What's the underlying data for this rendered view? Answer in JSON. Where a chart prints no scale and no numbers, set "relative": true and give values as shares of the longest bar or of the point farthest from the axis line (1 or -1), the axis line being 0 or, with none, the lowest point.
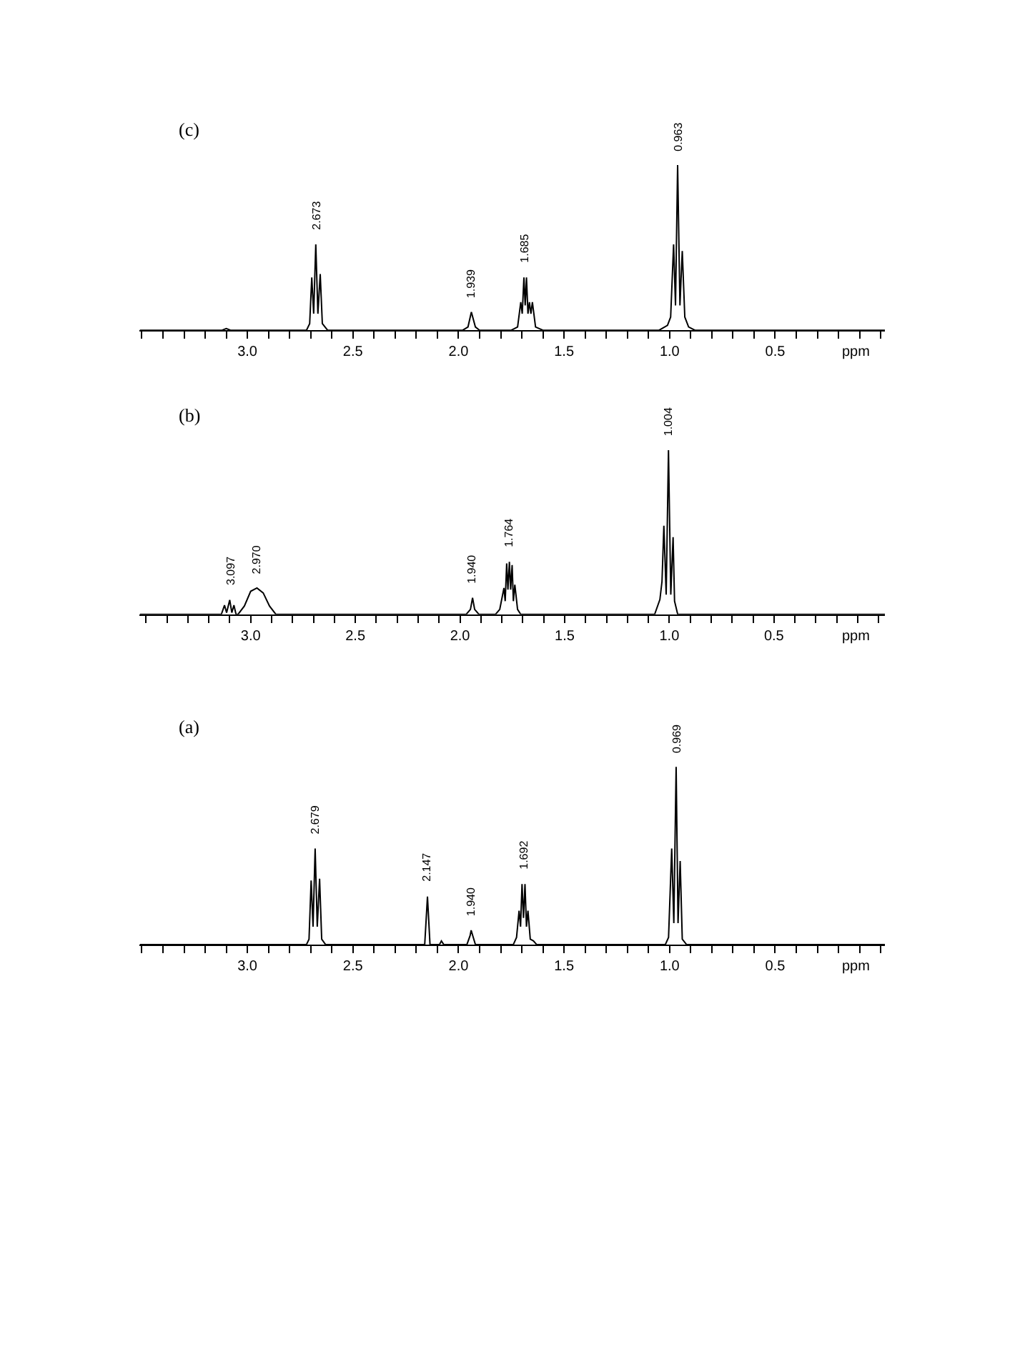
{
  "chart_data": [
    {
      "type": "line",
      "title": "(c)",
      "xlabel": "ppm",
      "relative": true,
      "xlim": [
        3.51,
        -0.02
      ],
      "xticks": [
        {
          "value": 3.5,
          "label": null
        },
        {
          "value": 3.4,
          "label": null
        },
        {
          "value": 3.3,
          "label": null
        },
        {
          "value": 3.2,
          "label": null
        },
        {
          "value": 3.1,
          "label": null
        },
        {
          "value": 3.0,
          "label": "3.0"
        },
        {
          "value": 2.9,
          "label": null
        },
        {
          "value": 2.8,
          "label": null
        },
        {
          "value": 2.7,
          "label": null
        },
        {
          "value": 2.6,
          "label": null
        },
        {
          "value": 2.5,
          "label": "2.5"
        },
        {
          "value": 2.4,
          "label": null
        },
        {
          "value": 2.3,
          "label": null
        },
        {
          "value": 2.2,
          "label": null
        },
        {
          "value": 2.1,
          "label": null
        },
        {
          "value": 2.0,
          "label": "2.0"
        },
        {
          "value": 1.9,
          "label": null
        },
        {
          "value": 1.8,
          "label": null
        },
        {
          "value": 1.7,
          "label": null
        },
        {
          "value": 1.6,
          "label": null
        },
        {
          "value": 1.5,
          "label": "1.5"
        },
        {
          "value": 1.4,
          "label": null
        },
        {
          "value": 1.3,
          "label": null
        },
        {
          "value": 1.2,
          "label": null
        },
        {
          "value": 1.1,
          "label": null
        },
        {
          "value": 1.0,
          "label": "1.0"
        },
        {
          "value": 0.9,
          "label": null
        },
        {
          "value": 0.8,
          "label": null
        },
        {
          "value": 0.7,
          "label": null
        },
        {
          "value": 0.6,
          "label": null
        },
        {
          "value": 0.5,
          "label": "0.5"
        },
        {
          "value": 0.4,
          "label": null
        },
        {
          "value": 0.3,
          "label": null
        },
        {
          "value": 0.2,
          "label": null
        },
        {
          "value": 0.1,
          "label": null
        },
        {
          "value": 0.0,
          "label": null
        }
      ],
      "annotations": [
        {
          "text": "2.673",
          "x": 2.673,
          "y": 0.52
        },
        {
          "text": "1.939",
          "x": 1.939,
          "y": 0.11
        },
        {
          "text": "1.685",
          "x": 1.685,
          "y": 0.32
        },
        {
          "text": "0.963",
          "x": 0.963,
          "y": 1
        }
      ],
      "series": [
        {
          "color": "#000000",
          "x": [
            3.51,
            3.12,
            3.1,
            3.08,
            2.72,
            2.705,
            2.695,
            2.686,
            2.676,
            2.666,
            2.655,
            2.645,
            2.62,
            1.98,
            1.955,
            1.939,
            1.92,
            1.9,
            1.75,
            1.72,
            1.705,
            1.698,
            1.69,
            1.684,
            1.678,
            1.671,
            1.664,
            1.657,
            1.65,
            1.635,
            1.6,
            1.05,
            1.01,
            0.995,
            0.981,
            0.972,
            0.962,
            0.951,
            0.94,
            0.928,
            0.91,
            0.88,
            -0.02
          ],
          "values": [
            0,
            0,
            0.01,
            0,
            0,
            0.04,
            0.32,
            0.1,
            0.52,
            0.1,
            0.34,
            0.04,
            0,
            0,
            0.02,
            0.11,
            0.02,
            0,
            0,
            0.02,
            0.17,
            0.1,
            0.32,
            0.15,
            0.32,
            0.1,
            0.17,
            0.1,
            0.17,
            0.02,
            0,
            0,
            0.03,
            0.08,
            0.52,
            0.15,
            1,
            0.15,
            0.48,
            0.08,
            0.02,
            0,
            0
          ]
        }
      ]
    },
    {
      "type": "line",
      "title": "(b)",
      "xlabel": "ppm",
      "relative": true,
      "xlim": [
        3.53,
        -0.03
      ],
      "xticks": [
        {
          "value": 3.5,
          "label": null
        },
        {
          "value": 3.4,
          "label": null
        },
        {
          "value": 3.3,
          "label": null
        },
        {
          "value": 3.2,
          "label": null
        },
        {
          "value": 3.1,
          "label": null
        },
        {
          "value": 3.0,
          "label": "3.0"
        },
        {
          "value": 2.9,
          "label": null
        },
        {
          "value": 2.8,
          "label": null
        },
        {
          "value": 2.7,
          "label": null
        },
        {
          "value": 2.6,
          "label": null
        },
        {
          "value": 2.5,
          "label": "2.5"
        },
        {
          "value": 2.4,
          "label": null
        },
        {
          "value": 2.3,
          "label": null
        },
        {
          "value": 2.2,
          "label": null
        },
        {
          "value": 2.1,
          "label": null
        },
        {
          "value": 2.0,
          "label": "2.0"
        },
        {
          "value": 1.9,
          "label": null
        },
        {
          "value": 1.8,
          "label": null
        },
        {
          "value": 1.7,
          "label": null
        },
        {
          "value": 1.6,
          "label": null
        },
        {
          "value": 1.5,
          "label": "1.5"
        },
        {
          "value": 1.4,
          "label": null
        },
        {
          "value": 1.3,
          "label": null
        },
        {
          "value": 1.2,
          "label": null
        },
        {
          "value": 1.1,
          "label": null
        },
        {
          "value": 1.0,
          "label": "1.0"
        },
        {
          "value": 0.9,
          "label": null
        },
        {
          "value": 0.8,
          "label": null
        },
        {
          "value": 0.7,
          "label": null
        },
        {
          "value": 0.6,
          "label": null
        },
        {
          "value": 0.5,
          "label": "0.5"
        },
        {
          "value": 0.4,
          "label": null
        },
        {
          "value": 0.3,
          "label": null
        },
        {
          "value": 0.2,
          "label": null
        },
        {
          "value": 0.1,
          "label": null
        },
        {
          "value": 0.0,
          "label": null
        }
      ],
      "annotations": [
        {
          "text": "3.097",
          "x": 3.097,
          "y": 0.087
        },
        {
          "text": "2.970",
          "x": 2.97,
          "y": 0.16
        },
        {
          "text": "1.940",
          "x": 1.94,
          "y": 0.1
        },
        {
          "text": "1.764",
          "x": 1.764,
          "y": 0.32
        },
        {
          "text": "1.004",
          "x": 1.004,
          "y": 1
        }
      ],
      "series": [
        {
          "color": "#000000",
          "x": [
            3.53,
            3.14,
            3.125,
            3.115,
            3.1,
            3.09,
            3.08,
            3.07,
            3.06,
            3.03,
            3.0,
            2.97,
            2.94,
            2.91,
            2.88,
            1.97,
            1.95,
            1.94,
            1.93,
            1.91,
            1.83,
            1.81,
            1.79,
            1.784,
            1.777,
            1.771,
            1.764,
            1.758,
            1.751,
            1.745,
            1.738,
            1.725,
            1.71,
            1.07,
            1.045,
            1.035,
            1.026,
            1.015,
            1.004,
            0.993,
            0.982,
            0.975,
            0.96,
            -0.03
          ],
          "values": [
            0,
            0,
            0.055,
            0.01,
            0.087,
            0.01,
            0.055,
            0,
            0,
            0.05,
            0.14,
            0.16,
            0.13,
            0.05,
            0,
            0,
            0.03,
            0.1,
            0.03,
            0,
            0,
            0.03,
            0.16,
            0.08,
            0.31,
            0.15,
            0.32,
            0.15,
            0.3,
            0.08,
            0.18,
            0.03,
            0,
            0,
            0.09,
            0.2,
            0.54,
            0.12,
            1,
            0.12,
            0.47,
            0.08,
            0,
            0
          ]
        }
      ]
    },
    {
      "type": "line",
      "title": "(a)",
      "xlabel": "ppm",
      "relative": true,
      "xlim": [
        3.51,
        -0.02
      ],
      "xticks": [
        {
          "value": 3.5,
          "label": null
        },
        {
          "value": 3.4,
          "label": null
        },
        {
          "value": 3.3,
          "label": null
        },
        {
          "value": 3.2,
          "label": null
        },
        {
          "value": 3.1,
          "label": null
        },
        {
          "value": 3.0,
          "label": "3.0"
        },
        {
          "value": 2.9,
          "label": null
        },
        {
          "value": 2.8,
          "label": null
        },
        {
          "value": 2.7,
          "label": null
        },
        {
          "value": 2.6,
          "label": null
        },
        {
          "value": 2.5,
          "label": "2.5"
        },
        {
          "value": 2.4,
          "label": null
        },
        {
          "value": 2.3,
          "label": null
        },
        {
          "value": 2.2,
          "label": null
        },
        {
          "value": 2.1,
          "label": null
        },
        {
          "value": 2.0,
          "label": "2.0"
        },
        {
          "value": 1.9,
          "label": null
        },
        {
          "value": 1.8,
          "label": null
        },
        {
          "value": 1.7,
          "label": null
        },
        {
          "value": 1.6,
          "label": null
        },
        {
          "value": 1.5,
          "label": "1.5"
        },
        {
          "value": 1.4,
          "label": null
        },
        {
          "value": 1.3,
          "label": null
        },
        {
          "value": 1.2,
          "label": null
        },
        {
          "value": 1.1,
          "label": null
        },
        {
          "value": 1.0,
          "label": "1.0"
        },
        {
          "value": 0.9,
          "label": null
        },
        {
          "value": 0.8,
          "label": null
        },
        {
          "value": 0.7,
          "label": null
        },
        {
          "value": 0.6,
          "label": null
        },
        {
          "value": 0.5,
          "label": "0.5"
        },
        {
          "value": 0.4,
          "label": null
        },
        {
          "value": 0.3,
          "label": null
        },
        {
          "value": 0.2,
          "label": null
        },
        {
          "value": 0.1,
          "label": null
        },
        {
          "value": 0.0,
          "label": null
        }
      ],
      "annotations": [
        {
          "text": "2.679",
          "x": 2.679,
          "y": 0.54
        },
        {
          "text": "2.147",
          "x": 2.147,
          "y": 0.27
        },
        {
          "text": "1.940",
          "x": 1.94,
          "y": 0.08
        },
        {
          "text": "1.692",
          "x": 1.692,
          "y": 0.34
        },
        {
          "text": "0.969",
          "x": 0.969,
          "y": 1
        }
      ],
      "series": [
        {
          "color": "#000000",
          "x": [
            3.51,
            2.72,
            2.708,
            2.698,
            2.689,
            2.679,
            2.669,
            2.658,
            2.648,
            2.63,
            2.16,
            2.147,
            2.135,
            2.09,
            2.081,
            2.07,
            1.96,
            1.945,
            1.94,
            1.93,
            1.92,
            1.74,
            1.725,
            1.713,
            1.706,
            1.699,
            1.692,
            1.685,
            1.678,
            1.671,
            1.66,
            1.645,
            1.63,
            1.02,
            1.005,
            0.99,
            0.98,
            0.969,
            0.96,
            0.95,
            0.94,
            0.92,
            -0.02
          ],
          "values": [
            0,
            0,
            0.03,
            0.36,
            0.1,
            0.54,
            0.1,
            0.37,
            0.03,
            0,
            0,
            0.27,
            0,
            0,
            0.02,
            0,
            0,
            0.05,
            0.08,
            0.04,
            0,
            0,
            0.04,
            0.19,
            0.1,
            0.34,
            0.15,
            0.34,
            0.1,
            0.19,
            0.03,
            0.02,
            0,
            0,
            0.04,
            0.54,
            0.12,
            1,
            0.12,
            0.47,
            0.03,
            0,
            0
          ]
        }
      ]
    }
  ]
}
